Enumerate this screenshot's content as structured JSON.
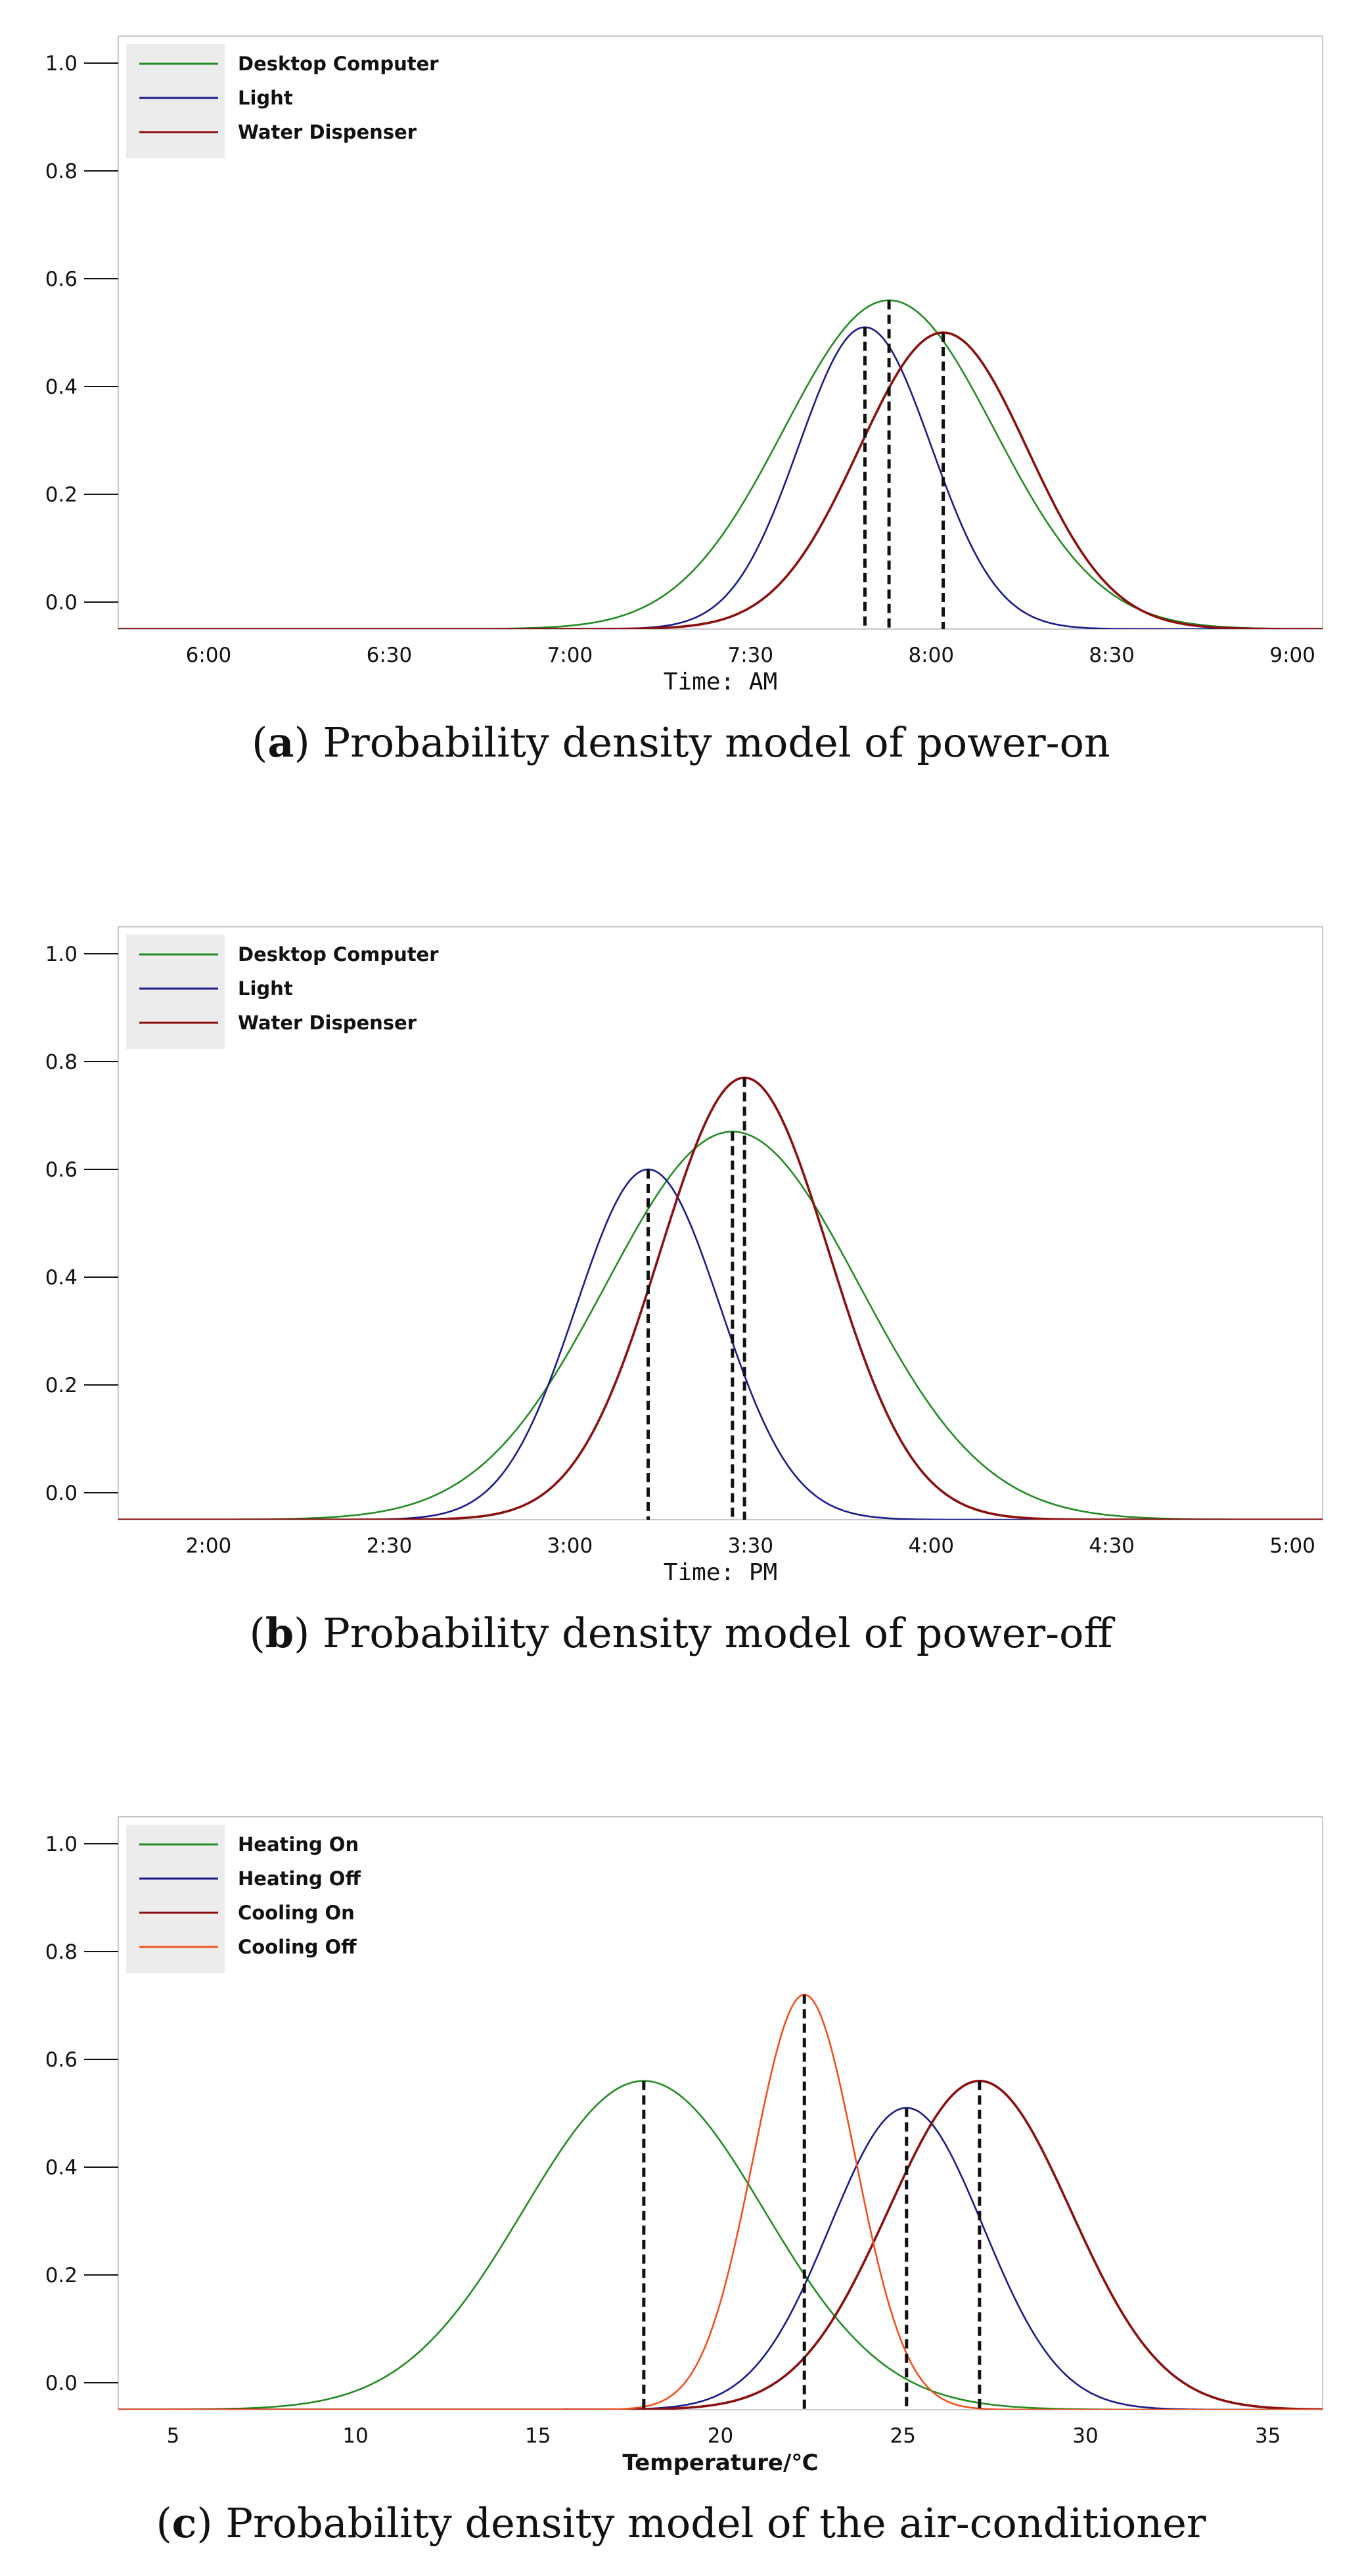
{
  "chart_data": [
    {
      "id": "a",
      "type": "line",
      "caption_letter": "a",
      "caption_open": "(",
      "caption_close": ")",
      "caption_text": " Probability density model of power-on",
      "xlabel": "Time: AM",
      "xlabel_style": "mono",
      "xlim": [
        345,
        545
      ],
      "ylim": [
        -0.05,
        1.05
      ],
      "x_ticks": [
        {
          "value": 360,
          "label": "6:00"
        },
        {
          "value": 390,
          "label": "6:30"
        },
        {
          "value": 420,
          "label": "7:00"
        },
        {
          "value": 450,
          "label": "7:30"
        },
        {
          "value": 480,
          "label": "8:00"
        },
        {
          "value": 510,
          "label": "8:30"
        },
        {
          "value": 540,
          "label": "9:00"
        }
      ],
      "y_ticks": [
        {
          "value": 0.0,
          "label": "0.0"
        },
        {
          "value": 0.2,
          "label": "0.2"
        },
        {
          "value": 0.4,
          "label": "0.4"
        },
        {
          "value": 0.6,
          "label": "0.6"
        },
        {
          "value": 0.8,
          "label": "0.8"
        },
        {
          "value": 1.0,
          "label": "1.0"
        }
      ],
      "baseline": -0.05,
      "series": [
        {
          "name": "Desktop Computer",
          "color": "#228b22",
          "mean": 473,
          "sd": 17.5,
          "peak": 0.56
        },
        {
          "name": "Light",
          "color": "#1a1a8c",
          "mean": 469,
          "sd": 11,
          "peak": 0.51
        },
        {
          "name": "Water Dispenser",
          "color": "#8b1010",
          "mean": 482,
          "sd": 14,
          "peak": 0.5
        }
      ],
      "peak_markers": [
        {
          "x": 473,
          "y": 0.56
        },
        {
          "x": 469,
          "y": 0.51
        },
        {
          "x": 482,
          "y": 0.5
        }
      ]
    },
    {
      "id": "b",
      "type": "line",
      "caption_letter": "b",
      "caption_open": "(",
      "caption_close": ")",
      "caption_text": " Probability density model of power-off",
      "xlabel": "Time: PM",
      "xlabel_style": "mono",
      "xlim": [
        105,
        305
      ],
      "ylim": [
        -0.05,
        1.05
      ],
      "x_ticks": [
        {
          "value": 120,
          "label": "2:00"
        },
        {
          "value": 150,
          "label": "2:30"
        },
        {
          "value": 180,
          "label": "3:00"
        },
        {
          "value": 210,
          "label": "3:30"
        },
        {
          "value": 240,
          "label": "4:00"
        },
        {
          "value": 270,
          "label": "4:30"
        },
        {
          "value": 300,
          "label": "5:00"
        }
      ],
      "y_ticks": [
        {
          "value": 0.0,
          "label": "0.0"
        },
        {
          "value": 0.2,
          "label": "0.2"
        },
        {
          "value": 0.4,
          "label": "0.4"
        },
        {
          "value": 0.6,
          "label": "0.6"
        },
        {
          "value": 0.8,
          "label": "0.8"
        },
        {
          "value": 1.0,
          "label": "1.0"
        }
      ],
      "baseline": -0.05,
      "series": [
        {
          "name": "Desktop Computer",
          "color": "#228b22",
          "mean": 207,
          "sd": 21,
          "peak": 0.67
        },
        {
          "name": "Light",
          "color": "#1a1a8c",
          "mean": 193,
          "sd": 12,
          "peak": 0.6
        },
        {
          "name": "Water Dispenser",
          "color": "#8b1010",
          "mean": 209,
          "sd": 14,
          "peak": 0.77
        }
      ],
      "peak_markers": [
        {
          "x": 193,
          "y": 0.6
        },
        {
          "x": 207,
          "y": 0.67
        },
        {
          "x": 209,
          "y": 0.77
        }
      ]
    },
    {
      "id": "c",
      "type": "line",
      "caption_letter": "c",
      "caption_open": "(",
      "caption_close": ")",
      "caption_text": " Probability density model of the air-conditioner",
      "xlabel": "Temperature/℃",
      "xlabel_style": "bold",
      "xlim": [
        3.5,
        36.5
      ],
      "ylim": [
        -0.05,
        1.05
      ],
      "x_ticks": [
        {
          "value": 5,
          "label": "5"
        },
        {
          "value": 10,
          "label": "10"
        },
        {
          "value": 15,
          "label": "15"
        },
        {
          "value": 20,
          "label": "20"
        },
        {
          "value": 25,
          "label": "25"
        },
        {
          "value": 30,
          "label": "30"
        },
        {
          "value": 35,
          "label": "35"
        }
      ],
      "y_ticks": [
        {
          "value": 0.0,
          "label": "0.0"
        },
        {
          "value": 0.2,
          "label": "0.2"
        },
        {
          "value": 0.4,
          "label": "0.4"
        },
        {
          "value": 0.6,
          "label": "0.6"
        },
        {
          "value": 0.8,
          "label": "0.8"
        },
        {
          "value": 1.0,
          "label": "1.0"
        }
      ],
      "baseline": -0.05,
      "series": [
        {
          "name": "Heating On",
          "color": "#228b22",
          "mean": 17.9,
          "sd": 3.3,
          "peak": 0.56
        },
        {
          "name": "Heating Off",
          "color": "#1a1a8c",
          "mean": 25.1,
          "sd": 2.1,
          "peak": 0.51
        },
        {
          "name": "Cooling On",
          "color": "#8b1010",
          "mean": 27.1,
          "sd": 2.5,
          "peak": 0.56
        },
        {
          "name": "Cooling Off",
          "color": "#f0501e",
          "mean": 22.3,
          "sd": 1.4,
          "peak": 0.72
        }
      ],
      "peak_markers": [
        {
          "x": 17.9,
          "y": 0.56
        },
        {
          "x": 22.3,
          "y": 0.72
        },
        {
          "x": 25.1,
          "y": 0.51
        },
        {
          "x": 27.1,
          "y": 0.56
        }
      ]
    }
  ]
}
